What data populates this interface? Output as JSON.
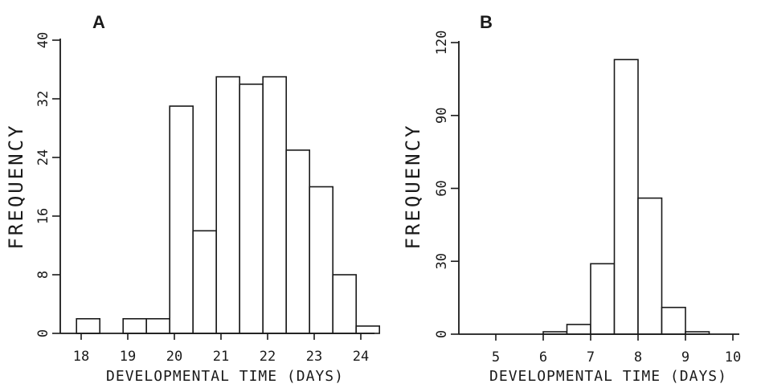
{
  "chart_data": [
    {
      "panel": "A",
      "type": "bar",
      "xlabel": "DEVELOPMENTAL TIME (DAYS)",
      "ylabel": "FREQUENCY",
      "x_tick_labels": [
        "18",
        "19",
        "20",
        "21",
        "22",
        "23",
        "24"
      ],
      "x_ticks": [
        18,
        19,
        20,
        21,
        22,
        23,
        24
      ],
      "y_ticks": [
        0,
        8,
        16,
        24,
        32,
        40
      ],
      "ylim": [
        0,
        40
      ],
      "xlim": [
        17.9,
        24.5
      ],
      "bin_width": 0.5,
      "bins": [
        {
          "x0": 17.9,
          "value": 2
        },
        {
          "x0": 18.4,
          "value": 0
        },
        {
          "x0": 18.9,
          "value": 2
        },
        {
          "x0": 19.4,
          "value": 2
        },
        {
          "x0": 19.9,
          "value": 31
        },
        {
          "x0": 20.4,
          "value": 14
        },
        {
          "x0": 20.9,
          "value": 35
        },
        {
          "x0": 21.4,
          "value": 34
        },
        {
          "x0": 21.9,
          "value": 35
        },
        {
          "x0": 22.4,
          "value": 25
        },
        {
          "x0": 22.9,
          "value": 20
        },
        {
          "x0": 23.4,
          "value": 8
        },
        {
          "x0": 23.9,
          "value": 1
        }
      ],
      "grid": false
    },
    {
      "panel": "B",
      "type": "bar",
      "xlabel": "DEVELOPMENTAL TIME (DAYS)",
      "ylabel": "FREQUENCY",
      "x_tick_labels": [
        "5",
        "6",
        "7",
        "8",
        "9",
        "10"
      ],
      "x_ticks": [
        5,
        6,
        7,
        8,
        9,
        10
      ],
      "y_ticks": [
        0,
        30,
        60,
        90,
        120
      ],
      "ylim": [
        0,
        120
      ],
      "xlim": [
        4,
        10.6
      ],
      "bin_width": 0.5,
      "bins": [
        {
          "x0": 4.5,
          "value": 0
        },
        {
          "x0": 5.0,
          "value": 0
        },
        {
          "x0": 5.5,
          "value": 0
        },
        {
          "x0": 6.0,
          "value": 1
        },
        {
          "x0": 6.5,
          "value": 4
        },
        {
          "x0": 7.0,
          "value": 29
        },
        {
          "x0": 7.5,
          "value": 113
        },
        {
          "x0": 8.0,
          "value": 56
        },
        {
          "x0": 8.5,
          "value": 11
        },
        {
          "x0": 9.0,
          "value": 1
        }
      ],
      "grid": false
    }
  ]
}
